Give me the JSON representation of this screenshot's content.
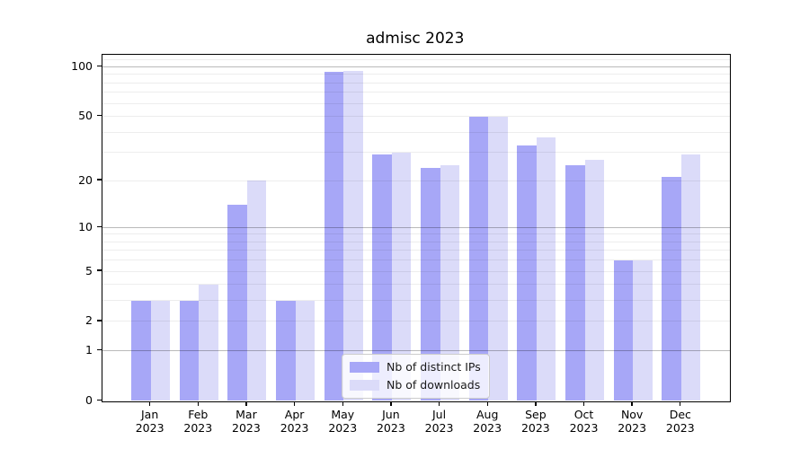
{
  "title": "admisc 2023",
  "chart_data": {
    "type": "bar",
    "title": "admisc 2023",
    "categories": [
      "Jan 2023",
      "Feb 2023",
      "Mar 2023",
      "Apr 2023",
      "May 2023",
      "Jun 2023",
      "Jul 2023",
      "Aug 2023",
      "Sep 2023",
      "Oct 2023",
      "Nov 2023",
      "Dec 2023"
    ],
    "series": [
      {
        "name": "Nb of distinct IPs",
        "color": "#a7a7f7",
        "values": [
          3,
          3,
          14,
          3,
          93,
          29,
          24,
          50,
          33,
          25,
          6,
          21
        ]
      },
      {
        "name": "Nb of downloads",
        "color": "#dbdbf9",
        "values": [
          3,
          4,
          20,
          3,
          95,
          30,
          25,
          50,
          37,
          27,
          6,
          29
        ]
      }
    ],
    "xlabel": "",
    "ylabel": "",
    "yscale": "symlog",
    "ylim": [
      0,
      120
    ],
    "yticks": [
      0,
      1,
      2,
      5,
      10,
      20,
      50,
      100
    ],
    "ytick_labels": [
      "0",
      "1",
      "2",
      "5",
      "10",
      "20",
      "50",
      "100"
    ],
    "grid_major_values": [
      1,
      10,
      100
    ],
    "grid_minor_values": [
      2,
      3,
      4,
      5,
      6,
      7,
      8,
      9,
      20,
      30,
      40,
      50,
      60,
      70,
      80,
      90,
      110
    ],
    "grid": "on",
    "legend_position": "lower center-left inside plot"
  },
  "legend": {
    "items": [
      {
        "label": "Nb of distinct IPs",
        "color": "#a7a7f7"
      },
      {
        "label": "Nb of downloads",
        "color": "#dbdbf9"
      }
    ]
  },
  "colors": {
    "distinct_ips_bar": "#a7a7f7",
    "downloads_bar": "#dbdbf9",
    "grid_major": "rgba(0,0,0,0.27)",
    "grid_minor": "rgba(0,0,0,0.07)",
    "spine": "#000000",
    "background": "#ffffff"
  }
}
